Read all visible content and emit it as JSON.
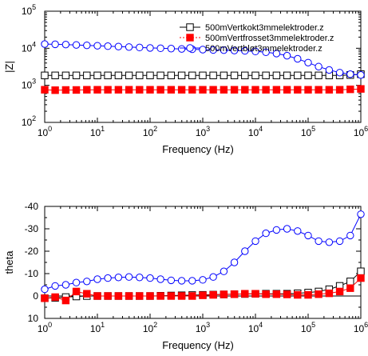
{
  "chart_data": [
    {
      "type": "line",
      "xlabel": "Frequency (Hz)",
      "ylabel": "|Z|",
      "x_scale": "log",
      "y_scale": "log",
      "xlim": [
        1,
        1000000
      ],
      "ylim": [
        100,
        100000
      ],
      "x_tick_labels": [
        {
          "base": "10",
          "exp": "0"
        },
        {
          "base": "10",
          "exp": "1"
        },
        {
          "base": "10",
          "exp": "2"
        },
        {
          "base": "10",
          "exp": "3"
        },
        {
          "base": "10",
          "exp": "4"
        },
        {
          "base": "10",
          "exp": "5"
        },
        {
          "base": "10",
          "exp": "6"
        }
      ],
      "y_tick_labels": [
        {
          "base": "10",
          "exp": "2"
        },
        {
          "base": "10",
          "exp": "3"
        },
        {
          "base": "10",
          "exp": "4"
        },
        {
          "base": "10",
          "exp": "5"
        }
      ],
      "legend": {
        "placement": "top-right"
      },
      "grid": false,
      "x": [
        1,
        1.58,
        2.51,
        3.98,
        6.31,
        10,
        15.8,
        25.1,
        39.8,
        63.1,
        100,
        158,
        251,
        398,
        631,
        1000,
        1580,
        2510,
        3980,
        6310,
        10000,
        15800,
        25100,
        39800,
        63100,
        100000,
        158000,
        251000,
        398000,
        631000,
        1000000
      ],
      "series": [
        {
          "name": "500mVertkokt3mmelektroder.z",
          "marker": "open-square",
          "color": "#000000",
          "values": [
            1850,
            1850,
            1850,
            1850,
            1850,
            1850,
            1850,
            1850,
            1850,
            1850,
            1850,
            1850,
            1850,
            1850,
            1850,
            1850,
            1850,
            1850,
            1850,
            1850,
            1850,
            1850,
            1850,
            1850,
            1850,
            1850,
            1850,
            1850,
            1860,
            1900,
            2000
          ]
        },
        {
          "name": "500mVertfrosset3mmelektroder.z",
          "marker": "filled-square",
          "color": "#ff0000",
          "values": [
            760,
            740,
            750,
            750,
            760,
            760,
            760,
            760,
            760,
            760,
            760,
            760,
            760,
            760,
            760,
            760,
            760,
            760,
            760,
            760,
            760,
            760,
            760,
            760,
            760,
            760,
            760,
            760,
            760,
            780,
            800
          ]
        },
        {
          "name": "500mVertbløt3mmelektroder.z",
          "marker": "open-circle",
          "color": "#0000ff",
          "values": [
            13000,
            12800,
            12600,
            12300,
            12000,
            11700,
            11400,
            11100,
            10800,
            10500,
            10200,
            10000,
            9800,
            9600,
            9400,
            9200,
            9000,
            8900,
            8700,
            8500,
            8200,
            7800,
            7200,
            6300,
            5200,
            4100,
            3200,
            2600,
            2200,
            2000,
            1900
          ]
        }
      ]
    },
    {
      "type": "line",
      "xlabel": "Frequency (Hz)",
      "ylabel": "theta",
      "x_scale": "log",
      "ylim": [
        10,
        -40
      ],
      "y_inverted": true,
      "xlim": [
        1,
        1000000
      ],
      "x_tick_labels": [
        {
          "base": "10",
          "exp": "0"
        },
        {
          "base": "10",
          "exp": "1"
        },
        {
          "base": "10",
          "exp": "2"
        },
        {
          "base": "10",
          "exp": "3"
        },
        {
          "base": "10",
          "exp": "4"
        },
        {
          "base": "10",
          "exp": "5"
        },
        {
          "base": "10",
          "exp": "6"
        }
      ],
      "y_tick_labels": [
        "10",
        "0",
        "-10",
        "-20",
        "-30",
        "-40"
      ],
      "grid": false,
      "x": [
        1,
        1.58,
        2.51,
        3.98,
        6.31,
        10,
        15.8,
        25.1,
        39.8,
        63.1,
        100,
        158,
        251,
        398,
        631,
        1000,
        1580,
        2510,
        3980,
        6310,
        10000,
        15800,
        25100,
        39800,
        63100,
        100000,
        158000,
        251000,
        398000,
        631000,
        1000000
      ],
      "series": [
        {
          "name": "500mVertkokt3mmelektroder.z",
          "marker": "open-square",
          "color": "#000000",
          "values": [
            1,
            0.8,
            0.5,
            0.2,
            0,
            0,
            0,
            0,
            0,
            0,
            0,
            -0.1,
            -0.2,
            -0.3,
            -0.4,
            -0.5,
            -0.6,
            -0.7,
            -0.8,
            -0.9,
            -1,
            -1,
            -1,
            -1,
            -1.2,
            -1.5,
            -2,
            -3,
            -4.5,
            -6.5,
            -11
          ]
        },
        {
          "name": "500mVertfrosset3mmelektroder.z",
          "marker": "filled-square",
          "color": "#ff0000",
          "values": [
            1,
            0.5,
            2,
            -2,
            -1,
            0,
            0,
            0,
            0,
            0,
            0,
            0,
            0,
            0,
            0,
            -0.3,
            -0.5,
            -0.7,
            -0.8,
            -1,
            -1,
            -0.8,
            -0.8,
            -0.7,
            -0.5,
            -0.5,
            -0.8,
            -1.2,
            -2,
            -3.5,
            -8
          ]
        },
        {
          "name": "500mVertbløt3mmelektroder.z",
          "marker": "open-circle",
          "color": "#0000ff",
          "values": [
            -3,
            -4.5,
            -5,
            -6,
            -6.5,
            -7.5,
            -8,
            -8.3,
            -8.5,
            -8.3,
            -8,
            -7.5,
            -7,
            -6.8,
            -6.8,
            -7.2,
            -8.5,
            -11,
            -15,
            -20,
            -24.5,
            -28,
            -29.5,
            -30,
            -29,
            -27,
            -24.5,
            -24,
            -24.5,
            -27,
            -36.5
          ]
        }
      ]
    }
  ]
}
